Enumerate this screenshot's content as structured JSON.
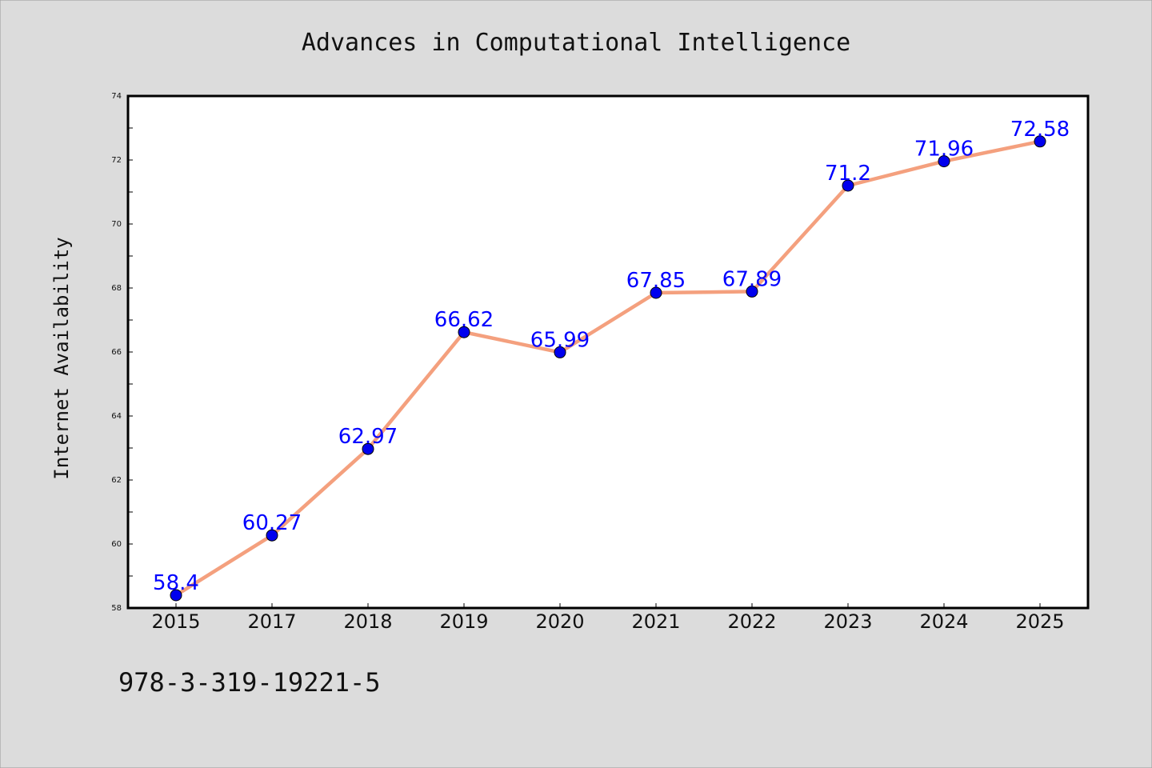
{
  "chart_data": {
    "type": "line",
    "title": "Advances in Computational Intelligence",
    "xlabel": "",
    "ylabel": "Internet Availability",
    "categories": [
      "2015",
      "2017",
      "2018",
      "2019",
      "2020",
      "2021",
      "2022",
      "2023",
      "2024",
      "2025"
    ],
    "series": [
      {
        "values": [
          58.4,
          60.27,
          62.97,
          66.62,
          65.99,
          67.85,
          67.89,
          71.2,
          71.96,
          72.58
        ],
        "labels": [
          "58.4",
          "60.27",
          "62.97",
          "66.62",
          "65.99",
          "67.85",
          "67.89",
          "71.2",
          "71.96",
          "72.58"
        ]
      }
    ],
    "ylim": [
      58,
      74
    ],
    "yticks": [
      "58",
      "60",
      "62",
      "64",
      "66",
      "68",
      "70",
      "72",
      "74"
    ],
    "grid": false,
    "legend": "none",
    "colors": {
      "line": "#f4a07e",
      "marker": "#0000ee",
      "label": "#0000ff",
      "background": "#dcdcdc",
      "plot_background": "#ffffff"
    }
  },
  "footer_text": "978-3-319-19221-5"
}
